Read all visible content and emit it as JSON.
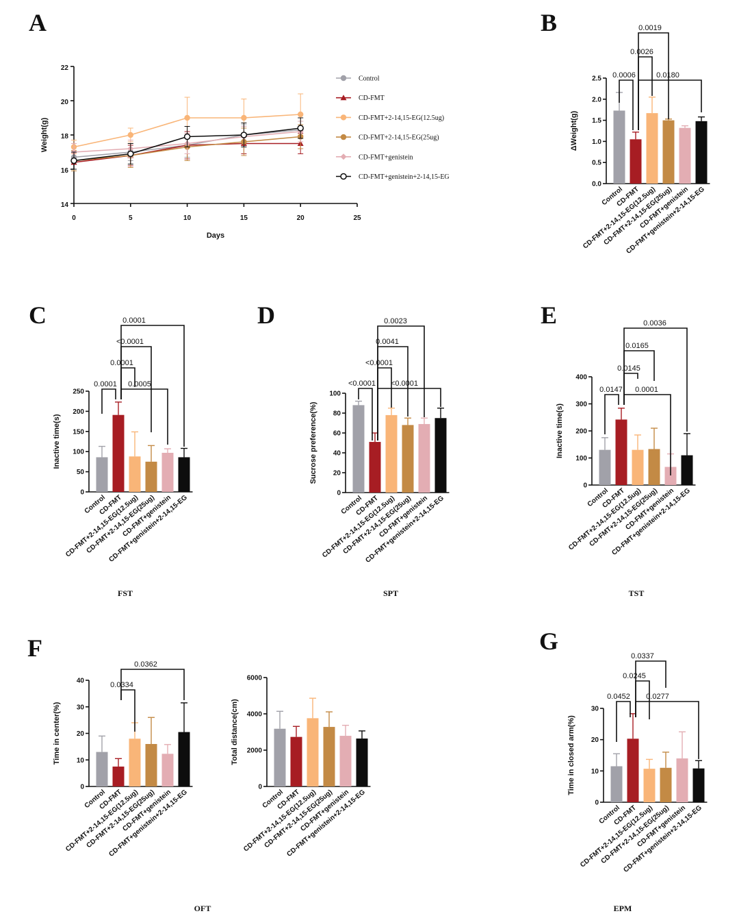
{
  "colors": {
    "control": "#a1a1a9",
    "cd_fmt": "#a71d23",
    "eg12": "#f9b578",
    "eg25": "#c38a45",
    "genistein": "#e3adb3",
    "combo": "#0d0d0d"
  },
  "chart_data": [
    {
      "panel": "A",
      "type": "line",
      "xlabel": "Days",
      "ylabel": "Weight(g)",
      "xlim": [
        0,
        25
      ],
      "ylim": [
        14,
        22
      ],
      "xticks": [
        0,
        5,
        10,
        15,
        20,
        25
      ],
      "yticks": [
        14,
        16,
        18,
        20,
        22
      ],
      "x": [
        0,
        5,
        10,
        15,
        20
      ],
      "legend_position": "right",
      "series": [
        {
          "name": "Control",
          "color": "#a1a1a9",
          "marker": "circle",
          "values": [
            16.7,
            17.0,
            17.4,
            18.0,
            18.3
          ],
          "err": [
            0.4,
            0.5,
            0.7,
            0.6,
            0.5
          ]
        },
        {
          "name": "CD-FMT",
          "color": "#a71d23",
          "marker": "triangle",
          "values": [
            16.4,
            16.8,
            17.4,
            17.5,
            17.5
          ],
          "err": [
            0.5,
            0.6,
            0.8,
            0.6,
            0.6
          ]
        },
        {
          "name": "CD-FMT+2-14,15-EG(12.5ug)",
          "color": "#f9b578",
          "marker": "circle",
          "values": [
            17.3,
            18.0,
            19.0,
            19.0,
            19.2
          ],
          "err": [
            0.4,
            0.4,
            1.2,
            1.1,
            1.2
          ]
        },
        {
          "name": "CD-FMT+2-14,15-EG(25ug)",
          "color": "#c38a45",
          "marker": "circle",
          "values": [
            16.5,
            16.8,
            17.3,
            17.6,
            17.9
          ],
          "err": [
            0.6,
            0.7,
            0.8,
            0.8,
            0.7
          ]
        },
        {
          "name": "CD-FMT+genistein",
          "color": "#e3adb3",
          "marker": "diamond",
          "values": [
            17.0,
            17.2,
            17.5,
            17.9,
            18.2
          ],
          "err": [
            0.5,
            0.5,
            0.6,
            0.6,
            0.6
          ]
        },
        {
          "name": "CD-FMT+genistein+2-14,15-EG",
          "color": "#0d0d0d",
          "marker": "open-circle",
          "values": [
            16.5,
            16.9,
            17.9,
            18.0,
            18.4
          ],
          "err": [
            0.5,
            0.6,
            0.6,
            0.7,
            0.6
          ]
        }
      ]
    },
    {
      "panel": "B",
      "type": "bar",
      "ylabel": "ΔWeight(g)",
      "ylim": [
        0,
        2.5
      ],
      "yticks": [
        "0.0",
        "0.5",
        "1.0",
        "1.5",
        "2.0",
        "2.5"
      ],
      "categories": [
        "Control",
        "CD-FMT",
        "CD-FMT+2-14,15-EG(12.5ug)",
        "CD-FMT+2-14,15-EG(25ug)",
        "CD-FMT+genistein",
        "CD-FMT+genistein+2-14,15-EG"
      ],
      "values": [
        1.73,
        1.05,
        1.67,
        1.5,
        1.32,
        1.48
      ],
      "err": [
        0.43,
        0.17,
        0.38,
        0.03,
        0.05,
        0.1
      ],
      "comparisons": [
        {
          "a": 0,
          "b": 1,
          "p": "0.0006"
        },
        {
          "a": 1,
          "b": 5,
          "p": "0.0180"
        },
        {
          "a": 1,
          "b": 2,
          "p": "0.0026"
        },
        {
          "a": 1,
          "b": 3,
          "p": "0.0019"
        }
      ]
    },
    {
      "panel": "C",
      "type": "bar",
      "caption": "FST",
      "ylabel": "Inactive time(s)",
      "ylim": [
        0,
        250
      ],
      "yticks": [
        "0",
        "50",
        "100",
        "150",
        "200",
        "250"
      ],
      "categories": [
        "Control",
        "CD-FMT",
        "CD-FMT+2-14,15-EG(12.5ug)",
        "CD-FMT+2-14,15-EG(25ug)",
        "CD-FMT+genistein",
        "CD-FMT+genistein+2-14,15-EG"
      ],
      "values": [
        86,
        191,
        88,
        75,
        97,
        86
      ],
      "err": [
        27,
        32,
        61,
        40,
        10,
        22
      ],
      "comparisons": [
        {
          "a": 0,
          "b": 1,
          "p": "0.0001"
        },
        {
          "a": 1,
          "b": 4,
          "p": "0.0005"
        },
        {
          "a": 1,
          "b": 2,
          "p": "0.0001"
        },
        {
          "a": 1,
          "b": 3,
          "p": "<0.0001"
        },
        {
          "a": 1,
          "b": 5,
          "p": "0.0001"
        }
      ]
    },
    {
      "panel": "D",
      "type": "bar",
      "caption": "SPT",
      "ylabel": "Sucrose preference(%)",
      "ylim": [
        0,
        100
      ],
      "yticks": [
        "0",
        "20",
        "40",
        "60",
        "80",
        "100"
      ],
      "categories": [
        "Control",
        "CD-FMT",
        "CD-FMT+2-14,15-EG(12.5ug)",
        "CD-FMT+2-14,15-EG(25ug)",
        "CD-FMT+genistein",
        "CD-FMT+genistein+2-14,15-EG"
      ],
      "values": [
        88,
        51,
        78,
        68,
        69,
        75
      ],
      "err": [
        4,
        9,
        7,
        7,
        6,
        10
      ],
      "comparisons": [
        {
          "a": 0,
          "b": 1,
          "p": "<0.0001"
        },
        {
          "a": 1,
          "b": 5,
          "p": "<0.0001"
        },
        {
          "a": 1,
          "b": 2,
          "p": "<0.0001"
        },
        {
          "a": 1,
          "b": 3,
          "p": "0.0041"
        },
        {
          "a": 1,
          "b": 4,
          "p": "0.0023"
        }
      ]
    },
    {
      "panel": "E",
      "type": "bar",
      "caption": "TST",
      "ylabel": "Inactive time(s)",
      "ylim": [
        0,
        400
      ],
      "yticks": [
        "0",
        "100",
        "200",
        "300",
        "400"
      ],
      "categories": [
        "Control",
        "CD-FMT",
        "CD-FMT+2-14,15-EG(12.5ug)",
        "CD-FMT+2-14,15-EG(25ug)",
        "CD-FMT+genistein",
        "CD-FMT+genistein+2-14,15-EG"
      ],
      "values": [
        130,
        242,
        130,
        133,
        67,
        110
      ],
      "err": [
        45,
        42,
        55,
        77,
        48,
        80
      ],
      "comparisons": [
        {
          "a": 0,
          "b": 1,
          "p": "0.0147"
        },
        {
          "a": 1,
          "b": 4,
          "p": "0.0001"
        },
        {
          "a": 1,
          "b": 2,
          "p": "0.0145"
        },
        {
          "a": 1,
          "b": 3,
          "p": "0.0165"
        },
        {
          "a": 1,
          "b": 5,
          "p": "0.0036"
        }
      ]
    },
    {
      "panel": "F",
      "type": "bar",
      "ylabel": "Time in center(%)",
      "ylim": [
        0,
        40
      ],
      "yticks": [
        "0",
        "10",
        "20",
        "30",
        "40"
      ],
      "categories": [
        "Control",
        "CD-FMT",
        "CD-FMT+2-14,15-EG(12.5ug)",
        "CD-FMT+2-14,15-EG(25ug)",
        "CD-FMT+genistein",
        "CD-FMT+genistein+2-14,15-EG"
      ],
      "values": [
        13,
        7.5,
        18,
        16,
        12.3,
        20.5
      ],
      "err": [
        6,
        3,
        6,
        10,
        3.5,
        11
      ],
      "comparisons": [
        {
          "a": 1,
          "b": 2,
          "p": "0.0334"
        },
        {
          "a": 1,
          "b": 5,
          "p": "0.0362"
        }
      ]
    },
    {
      "panel": "F2",
      "type": "bar",
      "caption": "OFT",
      "ylabel": "Total distance(cm)",
      "ylim": [
        0,
        6000
      ],
      "yticks": [
        "0",
        "2000",
        "4000",
        "6000"
      ],
      "categories": [
        "Control",
        "CD-FMT",
        "CD-FMT+2-14,15-EG(12.5ug)",
        "CD-FMT+2-14,15-EG(25ug)",
        "CD-FMT+genistein",
        "CD-FMT+genistein+2-14,15-EG"
      ],
      "values": [
        3180,
        2730,
        3760,
        3280,
        2790,
        2640
      ],
      "err": [
        960,
        580,
        1100,
        830,
        580,
        420
      ],
      "comparisons": []
    },
    {
      "panel": "G",
      "type": "bar",
      "caption": "EPM",
      "ylabel": "Time in closed arm(%)",
      "ylim": [
        0,
        30
      ],
      "yticks": [
        "0",
        "10",
        "20",
        "30"
      ],
      "categories": [
        "Control",
        "CD-FMT",
        "CD-FMT+2-14,15-EG(12.5ug)",
        "CD-FMT+2-14,15-EG(25ug)",
        "CD-FMT+genistein",
        "CD-FMT+genistein+2-14,15-EG"
      ],
      "values": [
        11.5,
        20.3,
        10.7,
        11,
        14,
        10.8
      ],
      "err": [
        4,
        8,
        3,
        5,
        8.5,
        2.5
      ],
      "comparisons": [
        {
          "a": 0,
          "b": 1,
          "p": "0.0452"
        },
        {
          "a": 1,
          "b": 5,
          "p": "0.0277"
        },
        {
          "a": 1,
          "b": 2,
          "p": "0.0245"
        },
        {
          "a": 1,
          "b": 3,
          "p": "0.0337"
        }
      ]
    }
  ]
}
